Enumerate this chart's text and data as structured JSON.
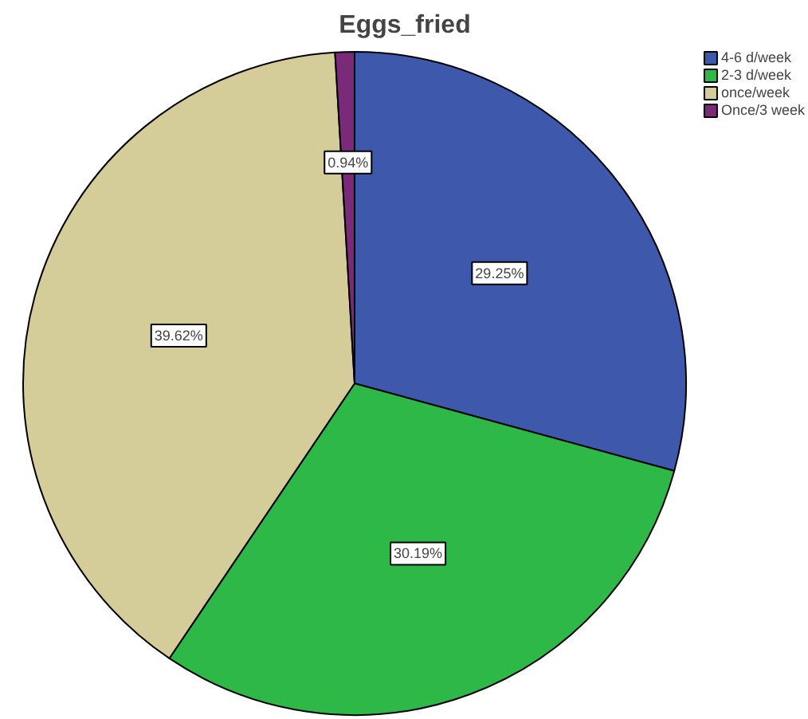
{
  "chart_data": {
    "type": "pie",
    "title": "Eggs_fried",
    "categories": [
      "4-6 d/week",
      "2-3 d/week",
      "once/week",
      "Once/3 week"
    ],
    "values": [
      29.25,
      30.19,
      39.62,
      0.94
    ],
    "colors": [
      "#3e58ac",
      "#2eb848",
      "#d4cc99",
      "#7b2a7a"
    ],
    "value_labels": [
      "29.25%",
      "30.19%",
      "39.62%",
      "0.94%"
    ],
    "legend": "top right"
  }
}
